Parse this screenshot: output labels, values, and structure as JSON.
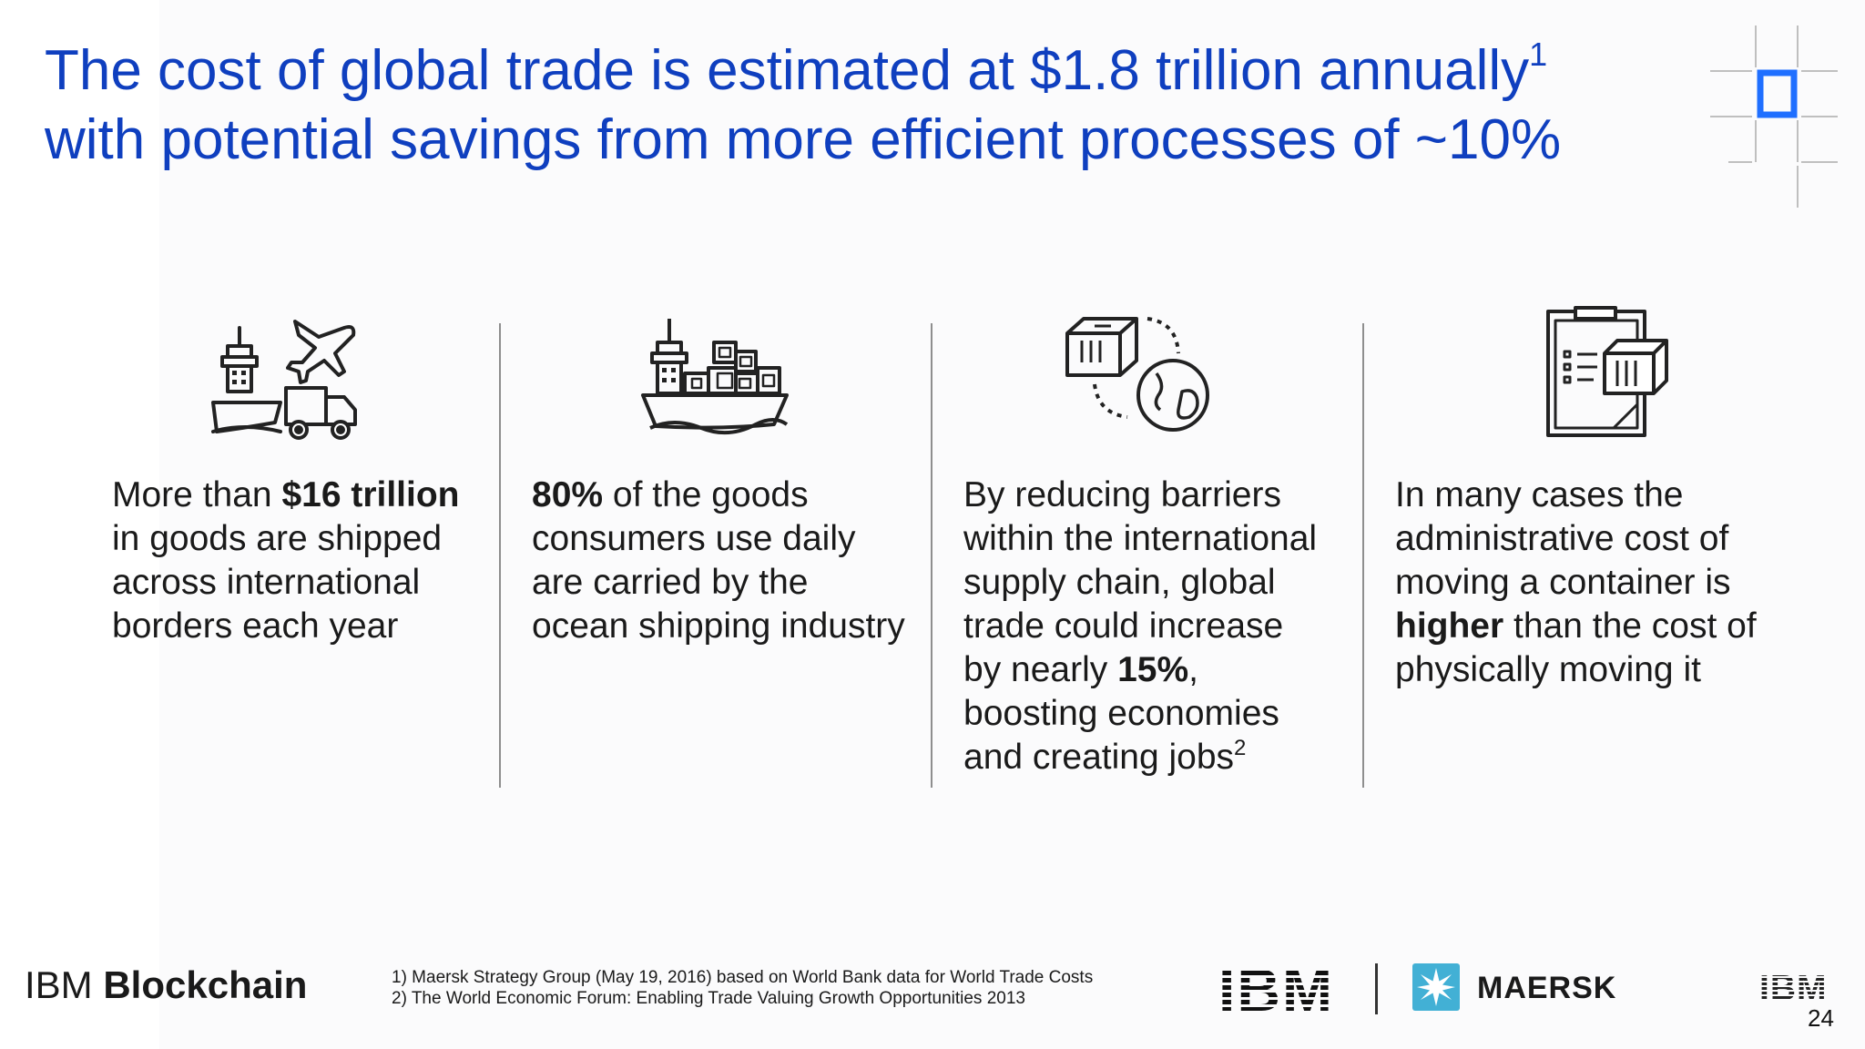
{
  "title": {
    "line1": "The cost of global trade is estimated at $1.8 trillion annually",
    "line1_sup": "1",
    "line2": "with potential savings from more efficient processes of ~10%"
  },
  "columns": [
    {
      "icon": "ship-plane-truck-icon",
      "lines": [
        {
          "pre": "More than ",
          "bold": "$16 trillion",
          "post": ""
        },
        {
          "pre": "in goods are shipped",
          "bold": "",
          "post": ""
        },
        {
          "pre": "across international",
          "bold": "",
          "post": ""
        },
        {
          "pre": "borders each year",
          "bold": "",
          "post": ""
        }
      ]
    },
    {
      "icon": "container-ship-icon",
      "lines": [
        {
          "pre": "",
          "bold": "80%",
          "post": " of the goods"
        },
        {
          "pre": "consumers use daily",
          "bold": "",
          "post": ""
        },
        {
          "pre": "are carried by the",
          "bold": "",
          "post": ""
        },
        {
          "pre": "ocean shipping industry",
          "bold": "",
          "post": ""
        }
      ]
    },
    {
      "icon": "package-globe-icon",
      "lines": [
        {
          "pre": "By reducing barriers",
          "bold": "",
          "post": ""
        },
        {
          "pre": "within the international",
          "bold": "",
          "post": ""
        },
        {
          "pre": "supply chain, global",
          "bold": "",
          "post": ""
        },
        {
          "pre": "trade could increase",
          "bold": "",
          "post": ""
        },
        {
          "pre": "by nearly ",
          "bold": "15%",
          "post": ","
        },
        {
          "pre": "boosting economies",
          "bold": "",
          "post": ""
        },
        {
          "pre": "and creating jobs",
          "bold": "",
          "post": "",
          "sup": "2"
        }
      ]
    },
    {
      "icon": "clipboard-package-icon",
      "lines": [
        {
          "pre": "In many cases the",
          "bold": "",
          "post": ""
        },
        {
          "pre": "administrative cost of",
          "bold": "",
          "post": ""
        },
        {
          "pre": "moving a container is",
          "bold": "",
          "post": ""
        },
        {
          "pre": "",
          "bold": "higher",
          "post": " than the cost of"
        },
        {
          "pre": "physically moving it",
          "bold": "",
          "post": ""
        }
      ]
    }
  ],
  "footer": {
    "brand_light": "IBM ",
    "brand_bold": "Blockchain",
    "footnote1": "1) Maersk Strategy Group (May 19, 2016) based on World Bank data for World Trade Costs",
    "footnote2": "2) The World Economic Forum: Enabling Trade Valuing Growth Opportunities 2013",
    "ibm_logo": "IBM",
    "maersk_name": "MAERSK",
    "ibm_small_logo": "IBM",
    "page_number": "24"
  },
  "colors": {
    "title": "#0f3fbf",
    "accent_square": "#1f6fff",
    "maersk_blue": "#42b0d5"
  }
}
